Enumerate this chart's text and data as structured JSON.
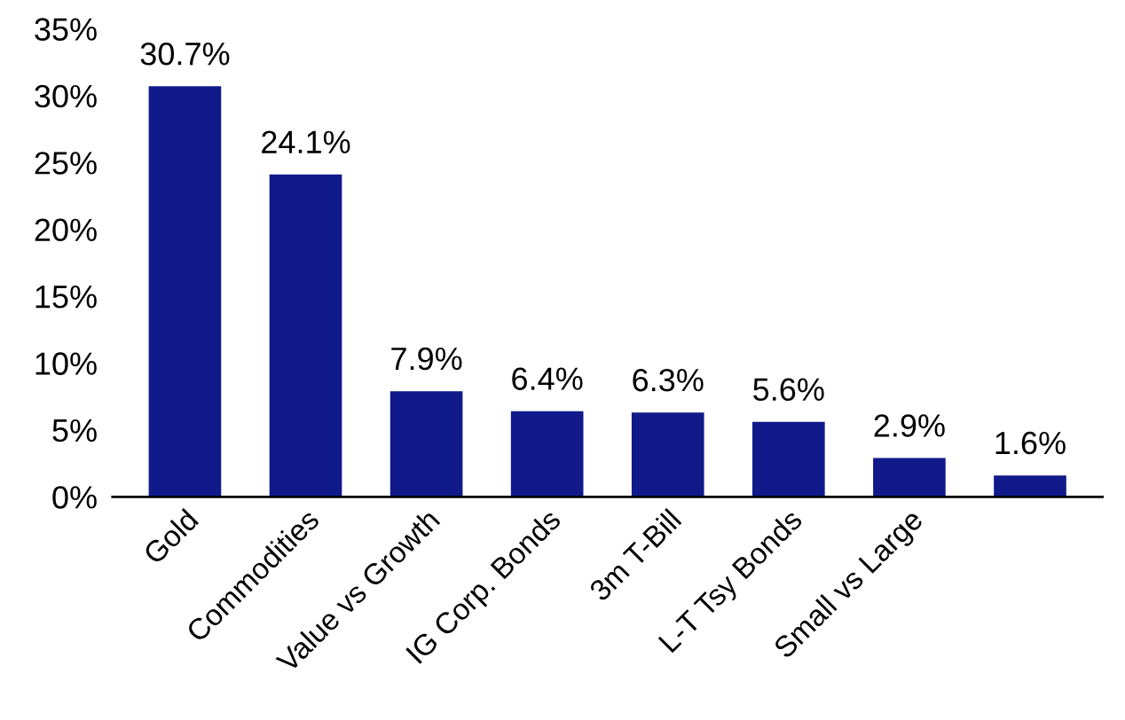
{
  "chart_data": {
    "type": "bar",
    "categories": [
      "Gold",
      "Commodities",
      "Value vs Growth",
      "IG Corp. Bonds",
      "3m T-Bill",
      "L-T Tsy Bonds",
      "Small vs Large",
      null
    ],
    "values": [
      30.7,
      24.1,
      7.9,
      6.4,
      6.3,
      5.6,
      2.9,
      1.6
    ],
    "value_labels": [
      "30.7%",
      "24.1%",
      "7.9%",
      "6.4%",
      "6.3%",
      "5.6%",
      "2.9%",
      "1.6%"
    ],
    "color": "#101a8a",
    "ylim": [
      0,
      35
    ],
    "yticks": [
      {
        "value": 0,
        "label": "0%"
      },
      {
        "value": 5,
        "label": "5%"
      },
      {
        "value": 10,
        "label": "10%"
      },
      {
        "value": 15,
        "label": "15%"
      },
      {
        "value": 20,
        "label": "20%"
      },
      {
        "value": 25,
        "label": "25%"
      },
      {
        "value": 30,
        "label": "30%"
      },
      {
        "value": 35,
        "label": "35%"
      }
    ],
    "grid": false,
    "legend": false
  }
}
